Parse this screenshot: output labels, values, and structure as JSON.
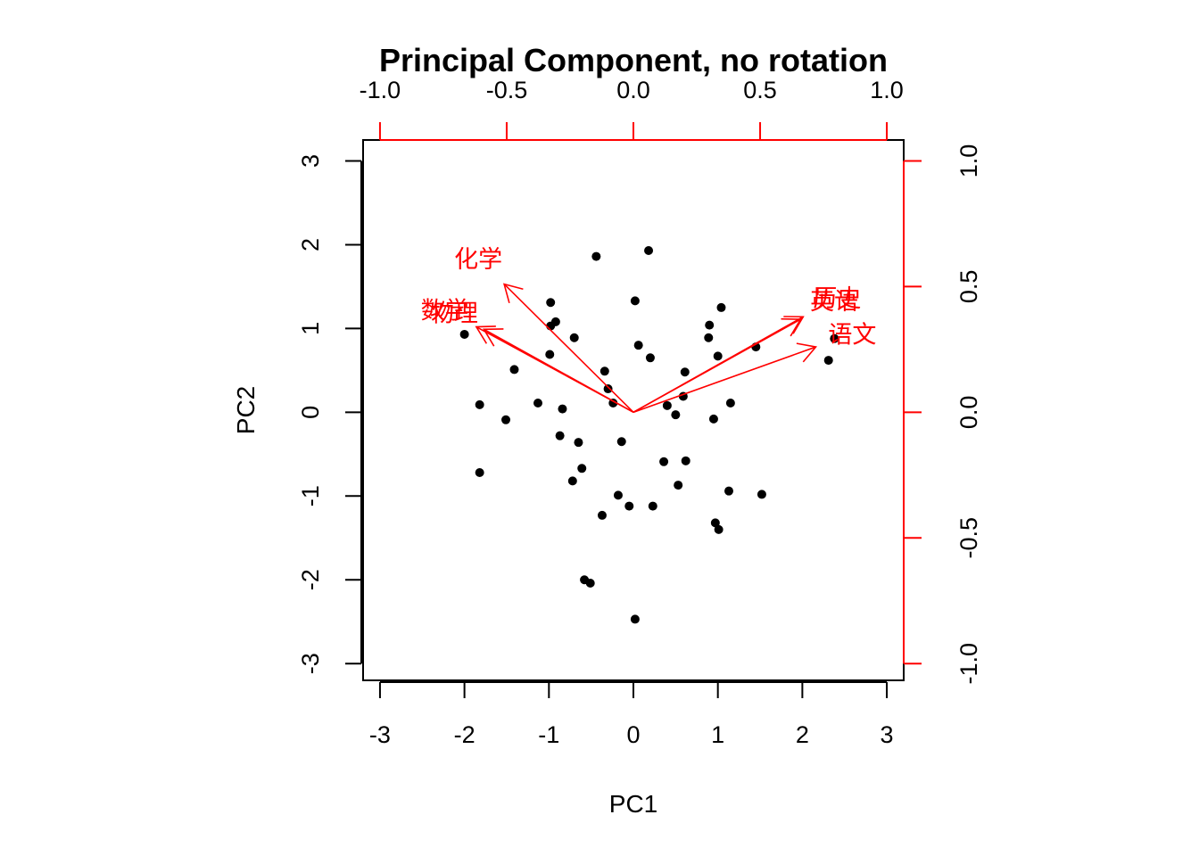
{
  "chart_data": {
    "type": "scatter",
    "subtype": "biplot",
    "title": "Principal Component, no rotation",
    "xlabel": "PC1",
    "ylabel": "PC2",
    "xlim": [
      -3.2,
      3.2
    ],
    "ylim": [
      -3.2,
      3.25
    ],
    "xticks": [
      -3,
      -2,
      -1,
      0,
      1,
      2,
      3
    ],
    "yticks": [
      -3,
      -2,
      -1,
      0,
      1,
      2,
      3
    ],
    "loading_xlim": [
      -1.0,
      1.0
    ],
    "loading_ylim": [
      -1.0,
      1.0
    ],
    "top_ticks": [
      -1.0,
      -0.5,
      0.0,
      0.5,
      1.0
    ],
    "right_ticks": [
      -1.0,
      -0.5,
      0.0,
      0.5,
      1.0
    ],
    "grid": false,
    "colors": {
      "points": "#000000",
      "loadings": "#ff0000",
      "axes": "#000000"
    },
    "points": [
      {
        "x": -2.0,
        "y": 0.93
      },
      {
        "x": -1.82,
        "y": 0.09
      },
      {
        "x": -1.82,
        "y": -0.72
      },
      {
        "x": -1.51,
        "y": -0.09
      },
      {
        "x": -1.41,
        "y": 0.51
      },
      {
        "x": -1.13,
        "y": 0.11
      },
      {
        "x": -0.98,
        "y": 1.31
      },
      {
        "x": -0.98,
        "y": 1.03
      },
      {
        "x": -0.92,
        "y": 1.08
      },
      {
        "x": -0.99,
        "y": 0.69
      },
      {
        "x": -0.87,
        "y": -0.28
      },
      {
        "x": -0.84,
        "y": 0.04
      },
      {
        "x": -0.7,
        "y": 0.89
      },
      {
        "x": -0.72,
        "y": -0.82
      },
      {
        "x": -0.65,
        "y": -0.36
      },
      {
        "x": -0.61,
        "y": -0.67
      },
      {
        "x": -0.58,
        "y": -2.0
      },
      {
        "x": -0.51,
        "y": -2.04
      },
      {
        "x": -0.44,
        "y": 1.86
      },
      {
        "x": -0.37,
        "y": -1.23
      },
      {
        "x": -0.34,
        "y": 0.49
      },
      {
        "x": -0.3,
        "y": 0.28
      },
      {
        "x": -0.24,
        "y": 0.11
      },
      {
        "x": -0.18,
        "y": -0.99
      },
      {
        "x": -0.14,
        "y": -0.35
      },
      {
        "x": -0.05,
        "y": -1.12
      },
      {
        "x": 0.02,
        "y": 1.33
      },
      {
        "x": 0.02,
        "y": -2.47
      },
      {
        "x": 0.06,
        "y": 0.8
      },
      {
        "x": 0.18,
        "y": 1.93
      },
      {
        "x": 0.2,
        "y": 0.65
      },
      {
        "x": 0.23,
        "y": -1.12
      },
      {
        "x": 0.36,
        "y": -0.59
      },
      {
        "x": 0.4,
        "y": 0.08
      },
      {
        "x": 0.5,
        "y": -0.03
      },
      {
        "x": 0.53,
        "y": -0.87
      },
      {
        "x": 0.59,
        "y": 0.19
      },
      {
        "x": 0.61,
        "y": 0.48
      },
      {
        "x": 0.62,
        "y": -0.58
      },
      {
        "x": 0.89,
        "y": 0.89
      },
      {
        "x": 0.9,
        "y": 1.04
      },
      {
        "x": 0.95,
        "y": -0.08
      },
      {
        "x": 0.97,
        "y": -1.32
      },
      {
        "x": 1.0,
        "y": 0.67
      },
      {
        "x": 1.01,
        "y": -1.4
      },
      {
        "x": 1.04,
        "y": 1.25
      },
      {
        "x": 1.13,
        "y": -0.94
      },
      {
        "x": 1.15,
        "y": 0.11
      },
      {
        "x": 1.45,
        "y": 0.78
      },
      {
        "x": 1.52,
        "y": -0.98
      },
      {
        "x": 2.31,
        "y": 0.62
      },
      {
        "x": 2.38,
        "y": 0.88
      }
    ],
    "loadings": [
      {
        "name": "化学",
        "x": -0.51,
        "y": 0.51
      },
      {
        "name": "数学",
        "x": -0.62,
        "y": 0.34
      },
      {
        "name": "物理",
        "x": -0.59,
        "y": 0.33
      },
      {
        "name": "历史",
        "x": 0.67,
        "y": 0.38
      },
      {
        "name": "英语",
        "x": 0.66,
        "y": 0.37
      },
      {
        "name": "语文",
        "x": 0.72,
        "y": 0.26
      }
    ]
  }
}
